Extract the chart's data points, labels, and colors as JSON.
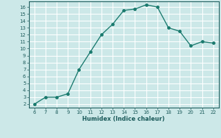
{
  "x": [
    6,
    7,
    8,
    9,
    10,
    11,
    12,
    13,
    14,
    15,
    16,
    17,
    18,
    19,
    20,
    21,
    22
  ],
  "y": [
    2,
    3,
    3,
    3.5,
    7,
    9.5,
    12,
    13.5,
    15.5,
    15.7,
    16.3,
    16.0,
    13.0,
    12.5,
    10.4,
    11.0,
    10.8
  ],
  "xlabel": "Humidex (Indice chaleur)",
  "xlim": [
    5.5,
    22.5
  ],
  "ylim": [
    1.5,
    16.8
  ],
  "yticks": [
    2,
    3,
    4,
    5,
    6,
    7,
    8,
    9,
    10,
    11,
    12,
    13,
    14,
    15,
    16
  ],
  "xticks": [
    6,
    7,
    8,
    9,
    10,
    11,
    12,
    13,
    14,
    15,
    16,
    17,
    18,
    19,
    20,
    21,
    22
  ],
  "line_color": "#1a7a6e",
  "bg_color": "#cce8e8",
  "grid_major_color": "#ffffff",
  "grid_minor_color": "#b8d8d8",
  "tick_color": "#1a5a5a",
  "label_color": "#1a5a5a",
  "marker": "o",
  "marker_size": 2.5,
  "line_width": 1.0
}
